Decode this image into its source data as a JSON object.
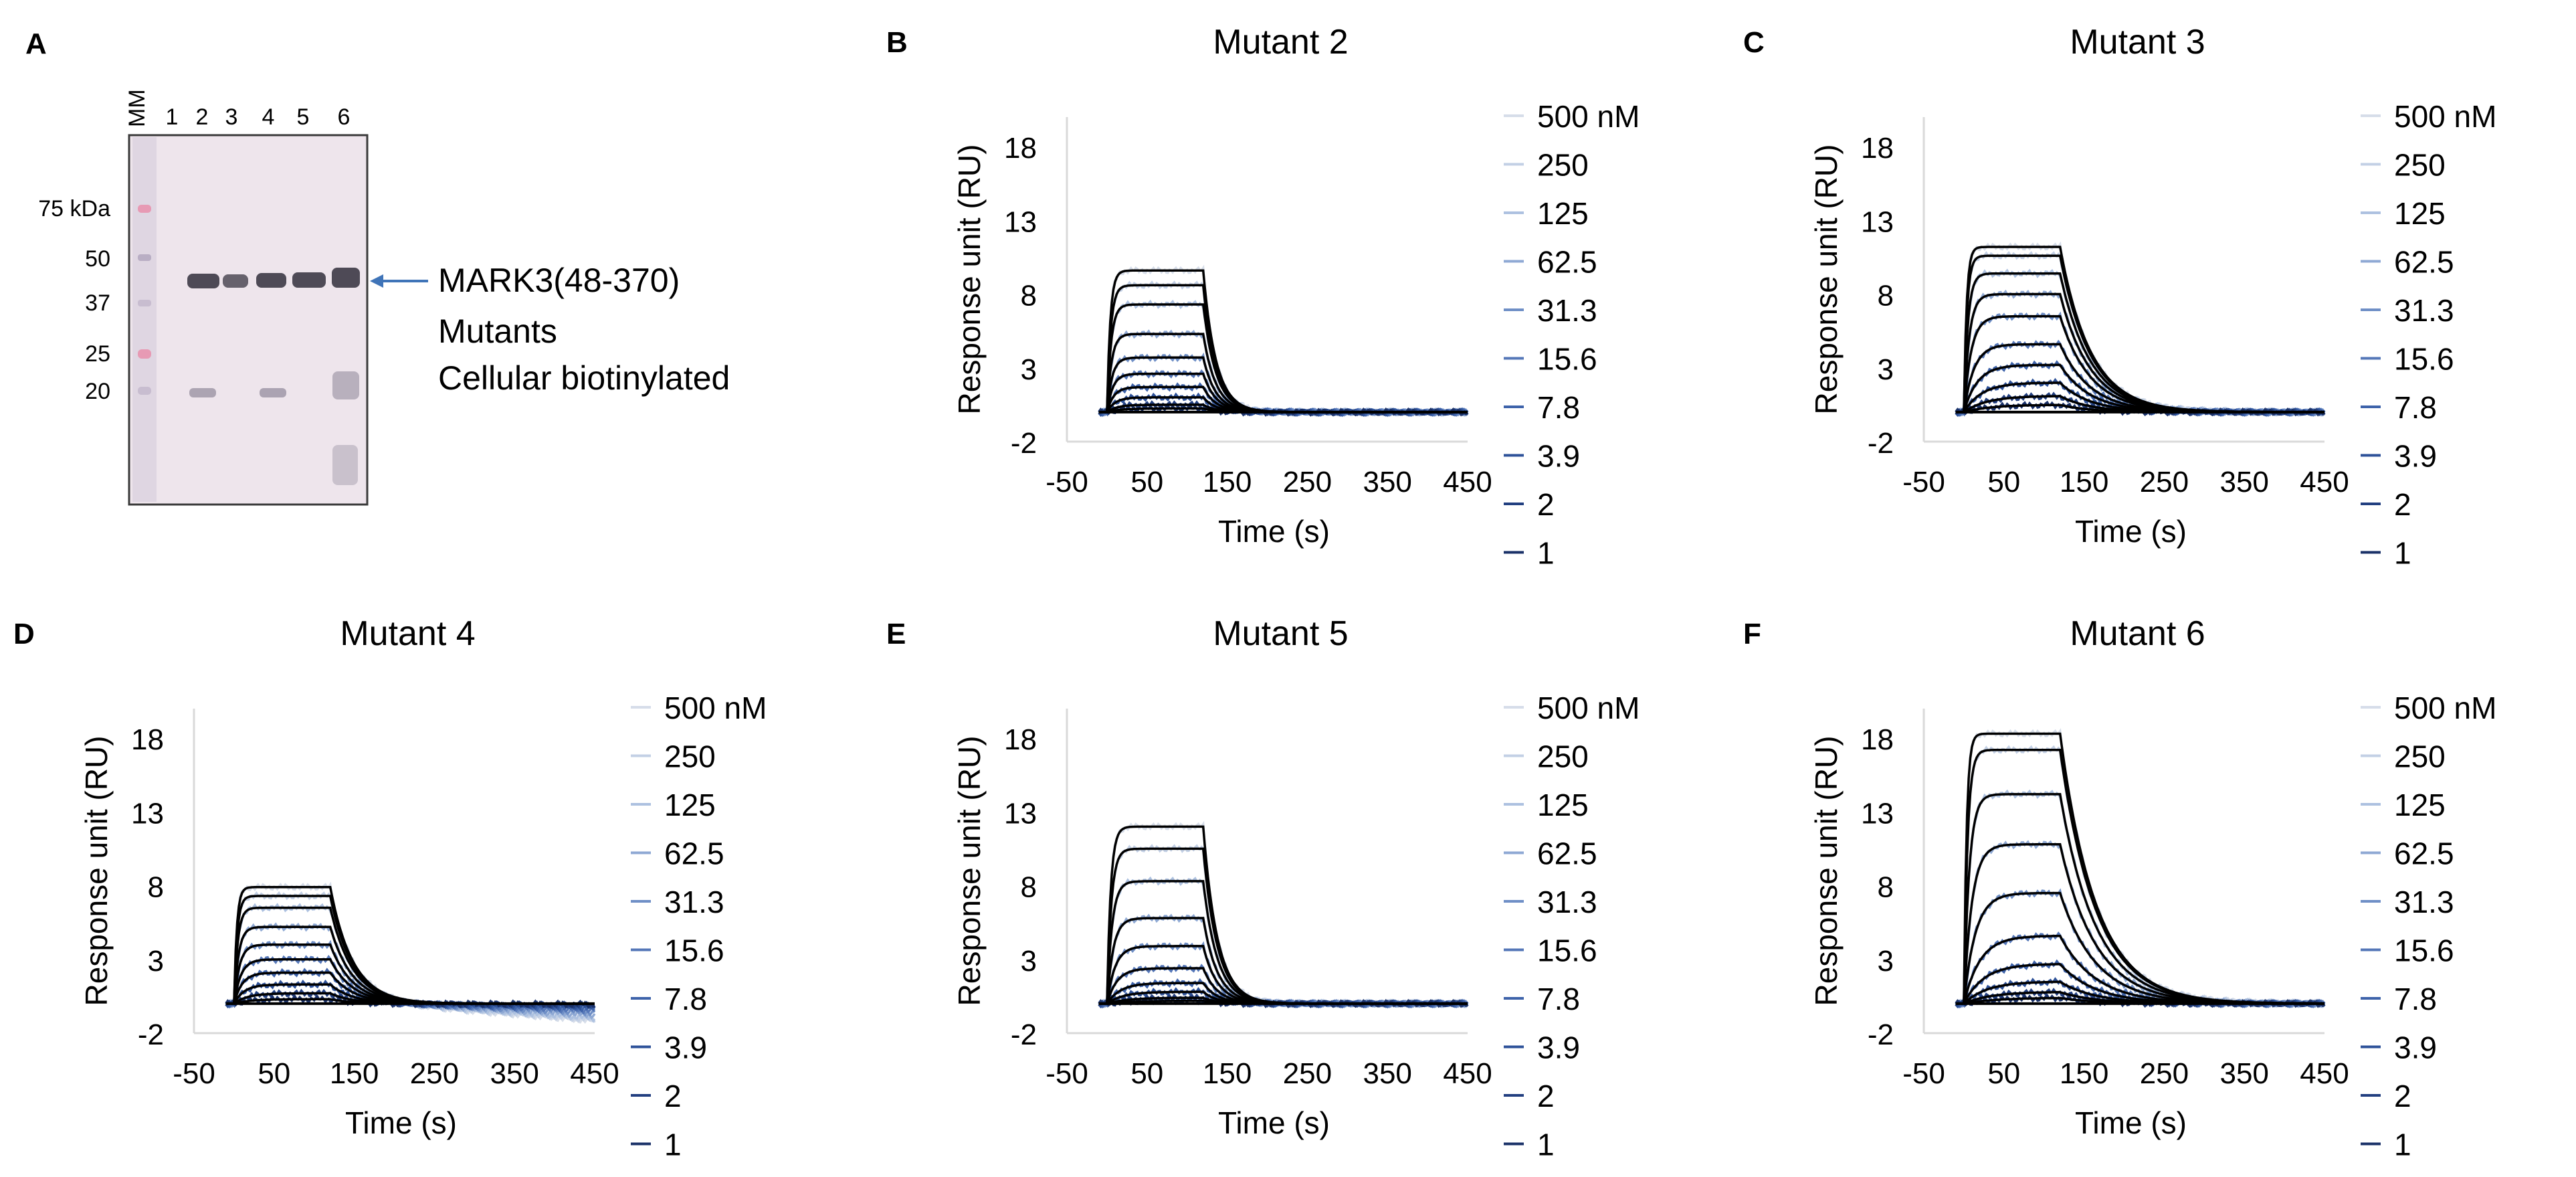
{
  "panels": {
    "A": {
      "letter": "A",
      "lanes": [
        "MM",
        "1",
        "2",
        "3",
        "4",
        "5",
        "6"
      ],
      "markers": [
        "75 kDa",
        "50",
        "37",
        "25",
        "20"
      ],
      "band_label": "MARK3(48-370)",
      "notes": [
        "Mutants",
        "Cellular biotinylated"
      ],
      "colors": {
        "membrane": "#eee5ec",
        "band": "#4e4a56",
        "marker_pink": "#e79ab4",
        "arrow": "#3f74b8"
      }
    }
  },
  "chart_data": [
    {
      "panel": "B",
      "type": "line",
      "title": "Mutant 2",
      "xlabel": "Time (s)",
      "ylabel": "Response unit (RU)",
      "xticks": [
        "-50",
        "50",
        "150",
        "250",
        "350",
        "450"
      ],
      "xlim": [
        -50,
        450
      ],
      "yticks": [
        "18",
        "13",
        "8",
        "3",
        "-2"
      ],
      "ylim": [
        -2,
        20
      ],
      "legend": [
        "500 nM",
        "250",
        "125",
        "62.5",
        "31.3",
        "15.6",
        "7.8",
        "3.9",
        "2",
        "1"
      ],
      "inject_start": 0,
      "inject_end": 120,
      "decay_tau": 16,
      "drift": 0,
      "fit_color": "#000000",
      "series": [
        {
          "name": "500 nM",
          "plateau": 9.6,
          "k": 0.25,
          "color": "#d6dde9"
        },
        {
          "name": "250",
          "plateau": 8.6,
          "k": 0.22,
          "color": "#c3d0e5"
        },
        {
          "name": "125",
          "plateau": 7.3,
          "k": 0.2,
          "color": "#adc1e0"
        },
        {
          "name": "62.5",
          "plateau": 5.3,
          "k": 0.18,
          "color": "#8fa9d4"
        },
        {
          "name": "31.3",
          "plateau": 3.7,
          "k": 0.16,
          "color": "#6f8fc6"
        },
        {
          "name": "15.6",
          "plateau": 2.6,
          "k": 0.14,
          "color": "#5577b8"
        },
        {
          "name": "7.8",
          "plateau": 1.7,
          "k": 0.12,
          "color": "#3e63aa"
        },
        {
          "name": "3.9",
          "plateau": 1.0,
          "k": 0.1,
          "color": "#2e5299"
        },
        {
          "name": "2",
          "plateau": 0.5,
          "k": 0.08,
          "color": "#223f80"
        },
        {
          "name": "1",
          "plateau": 0.25,
          "k": 0.06,
          "color": "#1a3168"
        }
      ]
    },
    {
      "panel": "C",
      "type": "line",
      "title": "Mutant 3",
      "xlabel": "Time (s)",
      "ylabel": "Response unit (RU)",
      "xticks": [
        "-50",
        "50",
        "150",
        "250",
        "350",
        "450"
      ],
      "xlim": [
        -50,
        450
      ],
      "yticks": [
        "18",
        "13",
        "8",
        "3",
        "-2"
      ],
      "ylim": [
        -2,
        20
      ],
      "legend": [
        "500 nM",
        "250",
        "125",
        "62.5",
        "31.3",
        "15.6",
        "7.8",
        "3.9",
        "2",
        "1"
      ],
      "inject_start": 0,
      "inject_end": 120,
      "decay_tau": 38,
      "drift": 0,
      "fit_color": "#000000",
      "series": [
        {
          "name": "500 nM",
          "plateau": 11.2,
          "k": 0.3,
          "color": "#d6dde9"
        },
        {
          "name": "250",
          "plateau": 10.6,
          "k": 0.26,
          "color": "#c3d0e5"
        },
        {
          "name": "125",
          "plateau": 9.4,
          "k": 0.2,
          "color": "#adc1e0"
        },
        {
          "name": "62.5",
          "plateau": 8.0,
          "k": 0.15,
          "color": "#8fa9d4"
        },
        {
          "name": "31.3",
          "plateau": 6.5,
          "k": 0.11,
          "color": "#6f8fc6"
        },
        {
          "name": "15.6",
          "plateau": 4.6,
          "k": 0.08,
          "color": "#5577b8"
        },
        {
          "name": "7.8",
          "plateau": 3.2,
          "k": 0.06,
          "color": "#3e63aa"
        },
        {
          "name": "3.9",
          "plateau": 2.0,
          "k": 0.045,
          "color": "#2e5299"
        },
        {
          "name": "2",
          "plateau": 1.1,
          "k": 0.035,
          "color": "#223f80"
        },
        {
          "name": "1",
          "plateau": 0.5,
          "k": 0.03,
          "color": "#1a3168"
        }
      ]
    },
    {
      "panel": "D",
      "type": "line",
      "title": "Mutant 4",
      "xlabel": "Time (s)",
      "ylabel": "Response unit (RU)",
      "xticks": [
        "-50",
        "50",
        "150",
        "250",
        "350",
        "450"
      ],
      "xlim": [
        -50,
        450
      ],
      "yticks": [
        "18",
        "13",
        "8",
        "3",
        "-2"
      ],
      "ylim": [
        -2,
        20
      ],
      "legend": [
        "500 nM",
        "250",
        "125",
        "62.5",
        "31.3",
        "15.6",
        "7.8",
        "3.9",
        "2",
        "1"
      ],
      "inject_start": 0,
      "inject_end": 120,
      "decay_tau": 28,
      "drift": -1.2,
      "fit_color": "#000000",
      "series": [
        {
          "name": "500 nM",
          "plateau": 7.9,
          "k": 0.3,
          "color": "#d6dde9"
        },
        {
          "name": "250",
          "plateau": 7.3,
          "k": 0.26,
          "color": "#c3d0e5"
        },
        {
          "name": "125",
          "plateau": 6.5,
          "k": 0.22,
          "color": "#adc1e0"
        },
        {
          "name": "62.5",
          "plateau": 5.2,
          "k": 0.18,
          "color": "#8fa9d4"
        },
        {
          "name": "31.3",
          "plateau": 4.0,
          "k": 0.15,
          "color": "#6f8fc6"
        },
        {
          "name": "15.6",
          "plateau": 3.0,
          "k": 0.12,
          "color": "#5577b8"
        },
        {
          "name": "7.8",
          "plateau": 2.1,
          "k": 0.1,
          "color": "#3e63aa"
        },
        {
          "name": "3.9",
          "plateau": 1.3,
          "k": 0.08,
          "color": "#2e5299"
        },
        {
          "name": "2",
          "plateau": 0.7,
          "k": 0.06,
          "color": "#223f80"
        },
        {
          "name": "1",
          "plateau": 0.3,
          "k": 0.05,
          "color": "#1a3168"
        }
      ]
    },
    {
      "panel": "E",
      "type": "line",
      "title": "Mutant 5",
      "xlabel": "Time (s)",
      "ylabel": "Response unit (RU)",
      "xticks": [
        "-50",
        "50",
        "150",
        "250",
        "350",
        "450"
      ],
      "xlim": [
        -50,
        450
      ],
      "yticks": [
        "18",
        "13",
        "8",
        "3",
        "-2"
      ],
      "ylim": [
        -2,
        20
      ],
      "legend": [
        "500 nM",
        "250",
        "125",
        "62.5",
        "31.3",
        "15.6",
        "7.8",
        "3.9",
        "2",
        "1"
      ],
      "inject_start": 0,
      "inject_end": 120,
      "decay_tau": 18,
      "drift": 0,
      "fit_color": "#000000",
      "series": [
        {
          "name": "500 nM",
          "plateau": 12.0,
          "k": 0.22,
          "color": "#d6dde9"
        },
        {
          "name": "250",
          "plateau": 10.5,
          "k": 0.19,
          "color": "#c3d0e5"
        },
        {
          "name": "125",
          "plateau": 8.3,
          "k": 0.16,
          "color": "#adc1e0"
        },
        {
          "name": "62.5",
          "plateau": 5.8,
          "k": 0.13,
          "color": "#8fa9d4"
        },
        {
          "name": "31.3",
          "plateau": 3.9,
          "k": 0.1,
          "color": "#6f8fc6"
        },
        {
          "name": "15.6",
          "plateau": 2.4,
          "k": 0.08,
          "color": "#5577b8"
        },
        {
          "name": "7.8",
          "plateau": 1.4,
          "k": 0.06,
          "color": "#3e63aa"
        },
        {
          "name": "3.9",
          "plateau": 0.8,
          "k": 0.05,
          "color": "#2e5299"
        },
        {
          "name": "2",
          "plateau": 0.4,
          "k": 0.04,
          "color": "#223f80"
        },
        {
          "name": "1",
          "plateau": 0.2,
          "k": 0.03,
          "color": "#1a3168"
        }
      ]
    },
    {
      "panel": "F",
      "type": "line",
      "title": "Mutant 6",
      "xlabel": "Time (s)",
      "ylabel": "Response unit (RU)",
      "xticks": [
        "-50",
        "50",
        "150",
        "250",
        "350",
        "450"
      ],
      "xlim": [
        -50,
        450
      ],
      "yticks": [
        "18",
        "13",
        "8",
        "3",
        "-2"
      ],
      "ylim": [
        -2,
        20
      ],
      "legend": [
        "500 nM",
        "250",
        "125",
        "62.5",
        "31.3",
        "15.6",
        "7.8",
        "3.9",
        "2",
        "1"
      ],
      "inject_start": 0,
      "inject_end": 120,
      "decay_tau": 45,
      "drift": 0,
      "fit_color": "#000000",
      "series": [
        {
          "name": "500 nM",
          "plateau": 18.3,
          "k": 0.3,
          "color": "#d6dde9"
        },
        {
          "name": "250",
          "plateau": 17.2,
          "k": 0.22,
          "color": "#c3d0e5"
        },
        {
          "name": "125",
          "plateau": 14.2,
          "k": 0.15,
          "color": "#adc1e0"
        },
        {
          "name": "62.5",
          "plateau": 10.8,
          "k": 0.1,
          "color": "#8fa9d4"
        },
        {
          "name": "31.3",
          "plateau": 7.5,
          "k": 0.07,
          "color": "#6f8fc6"
        },
        {
          "name": "15.6",
          "plateau": 4.6,
          "k": 0.05,
          "color": "#5577b8"
        },
        {
          "name": "7.8",
          "plateau": 2.7,
          "k": 0.04,
          "color": "#3e63aa"
        },
        {
          "name": "3.9",
          "plateau": 1.5,
          "k": 0.035,
          "color": "#2e5299"
        },
        {
          "name": "2",
          "plateau": 0.8,
          "k": 0.03,
          "color": "#223f80"
        },
        {
          "name": "1",
          "plateau": 0.4,
          "k": 0.025,
          "color": "#1a3168"
        }
      ]
    }
  ]
}
